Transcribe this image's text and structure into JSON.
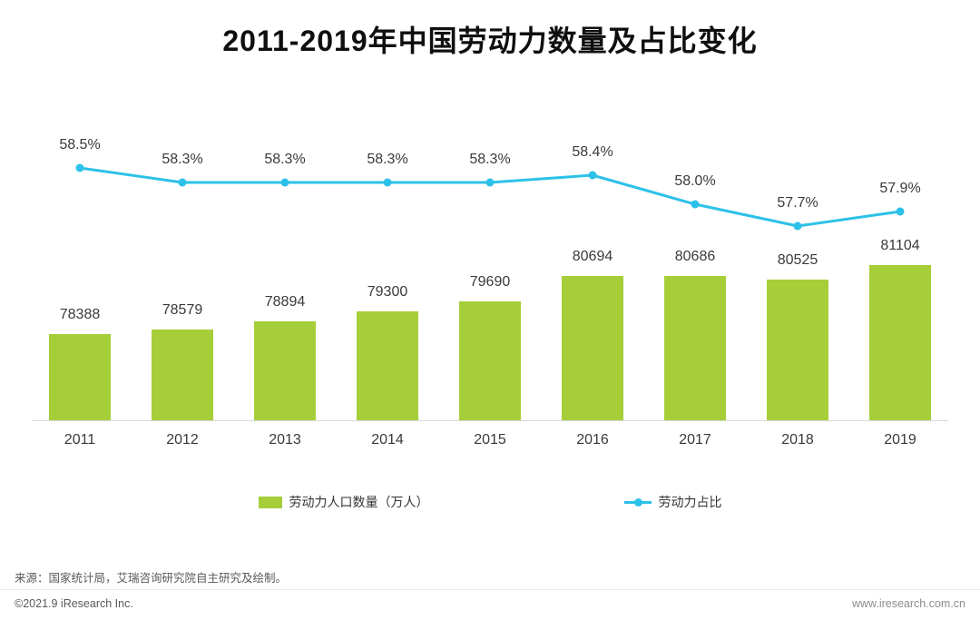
{
  "title": "2011-2019年中国劳动力数量及占比变化",
  "chart_data": {
    "type": "bar+line",
    "title": "2011-2019年中国劳动力数量及占比变化",
    "categories": [
      "2011",
      "2012",
      "2013",
      "2014",
      "2015",
      "2016",
      "2017",
      "2018",
      "2019"
    ],
    "series": [
      {
        "name": "劳动力人口数量（万人）",
        "type": "bar",
        "color": "#a6ce39",
        "values": [
          78388,
          78579,
          78894,
          79300,
          79690,
          80694,
          80686,
          80525,
          81104
        ]
      },
      {
        "name": "劳动力占比",
        "type": "line",
        "color": "#2cc1e8",
        "values": [
          58.5,
          58.3,
          58.3,
          58.3,
          58.3,
          58.4,
          58.0,
          57.7,
          57.9
        ],
        "labels": [
          "58.5%",
          "58.3%",
          "58.3%",
          "58.3%",
          "58.3%",
          "58.4%",
          "58.0%",
          "57.7%",
          "57.9%"
        ]
      }
    ],
    "bar_ylim": [
      75000,
      82000
    ],
    "line_ylim": [
      57.5,
      58.75
    ],
    "grid": false,
    "legend_position": "bottom",
    "data_labels": true
  },
  "footer": {
    "source": "来源：国家统计局，艾瑞咨询研究院自主研究及绘制。",
    "copyright": "©2021.9 iResearch Inc.",
    "website": "www.iresearch.com.cn"
  },
  "colors": {
    "bar": "#a6ce39",
    "line": "#2cc1e8",
    "axis": "#d9d9d9",
    "title_text": "#0f0f0f",
    "label_text": "#3a3a3a"
  }
}
